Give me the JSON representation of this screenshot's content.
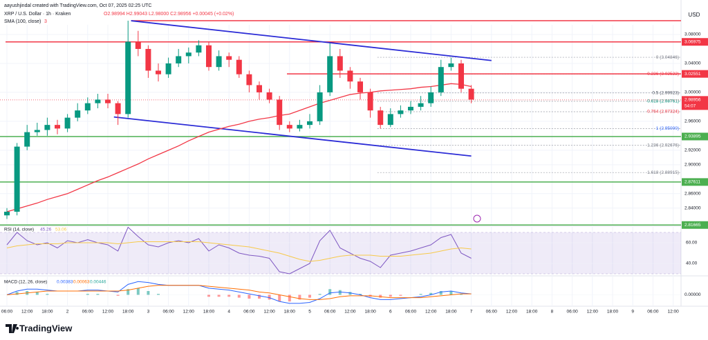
{
  "header": {
    "author_line": "aayushjindal created with TradingView.com, Oct 07, 2025 02:25 UTC",
    "symbol_line": "XRP / U.S. Dollar · 1h · Kraken",
    "ohlc_line": "O2.98994 H2.99043 L2.98000 C2.98956 +0.00045 (+0.02%)",
    "sma_label": "SMA (100, close)",
    "sma_value": "3"
  },
  "currency": "USD",
  "brand": "TradingView",
  "chart_data": {
    "type": "candlestick",
    "open": [
      2.83,
      2.835,
      2.925,
      2.945,
      2.948,
      2.955,
      2.95,
      2.965,
      2.975,
      2.985,
      2.99,
      2.985,
      2.97,
      3.07,
      3.06,
      3.03,
      3.025,
      3.04,
      3.05,
      3.055,
      3.065,
      3.035,
      3.05,
      3.045,
      3.025,
      3.01,
      3.0,
      2.99,
      2.955,
      2.95,
      2.955,
      2.96,
      3.0,
      3.05,
      3.03,
      3.015,
      3.0,
      2.975,
      2.955,
      2.97,
      2.975,
      2.98,
      2.985,
      3.0,
      3.035,
      3.04,
      3.005
    ],
    "high": [
      2.84,
      2.93,
      2.955,
      2.958,
      2.965,
      2.962,
      2.97,
      2.985,
      2.993,
      2.998,
      2.998,
      2.988,
      3.099,
      3.085,
      3.065,
      3.04,
      3.048,
      3.06,
      3.062,
      3.072,
      3.07,
      3.058,
      3.055,
      3.05,
      3.03,
      3.015,
      3.005,
      2.995,
      2.96,
      2.962,
      2.97,
      3.01,
      3.068,
      3.06,
      3.035,
      3.02,
      3.005,
      2.98,
      2.978,
      2.982,
      2.988,
      2.995,
      3.008,
      3.045,
      3.048,
      3.045,
      3.01
    ],
    "low": [
      2.825,
      2.83,
      2.92,
      2.94,
      2.94,
      2.942,
      2.945,
      2.96,
      2.97,
      2.978,
      2.978,
      2.955,
      2.965,
      3.05,
      3.02,
      3.015,
      3.02,
      3.035,
      3.04,
      3.05,
      3.03,
      3.03,
      3.035,
      3.02,
      3.0,
      2.99,
      2.985,
      2.948,
      2.945,
      2.946,
      2.95,
      2.955,
      2.995,
      3.02,
      3.005,
      2.99,
      2.965,
      2.95,
      2.952,
      2.965,
      2.97,
      2.975,
      2.98,
      2.995,
      3.03,
      3.0,
      2.985
    ],
    "close": [
      2.835,
      2.925,
      2.945,
      2.948,
      2.955,
      2.95,
      2.965,
      2.975,
      2.985,
      2.99,
      2.985,
      2.97,
      3.07,
      3.06,
      3.03,
      3.025,
      3.04,
      3.05,
      3.055,
      3.065,
      3.035,
      3.05,
      3.045,
      3.025,
      3.01,
      3.0,
      2.99,
      2.955,
      2.95,
      2.955,
      2.96,
      3.0,
      3.05,
      3.03,
      3.015,
      3.0,
      2.975,
      2.955,
      2.97,
      2.975,
      2.98,
      2.985,
      3.0,
      3.035,
      3.04,
      3.005,
      2.99
    ],
    "colors": {
      "up": "#089981",
      "down": "#f23645"
    },
    "ylim": [
      2.815,
      3.1
    ],
    "yticks": [
      {
        "value": 3.08,
        "label": "3.08000"
      },
      {
        "value": 3.04,
        "label": "3.04000"
      },
      {
        "value": 3.0,
        "label": "3.00000"
      },
      {
        "value": 2.96,
        "label": "2.96000"
      },
      {
        "value": 2.92,
        "label": "2.92000"
      },
      {
        "value": 2.9,
        "label": "2.90000"
      },
      {
        "value": 2.86,
        "label": "2.86000"
      },
      {
        "value": 2.84,
        "label": "2.84000"
      }
    ],
    "sma": {
      "color": "#f23645",
      "values": [
        2.835,
        2.839,
        2.843,
        2.847,
        2.852,
        2.856,
        2.86,
        2.866,
        2.872,
        2.878,
        2.883,
        2.889,
        2.895,
        2.901,
        2.908,
        2.914,
        2.92,
        2.926,
        2.933,
        2.939,
        2.945,
        2.949,
        2.953,
        2.956,
        2.96,
        2.963,
        2.965,
        2.968,
        2.97,
        2.975,
        2.98,
        2.985,
        2.989,
        2.993,
        2.997,
        2.999,
        3.0,
        3.002,
        3.003,
        3.004,
        3.005,
        3.007,
        3.008,
        3.01,
        3.012,
        3.011,
        3.008
      ]
    },
    "hlines": [
      {
        "value": 3.099,
        "color": "#f23645"
      }
    ],
    "price_tags": [
      {
        "value": 3.06975,
        "color": "#f23645"
      },
      {
        "value": 3.02551,
        "color": "#f23645"
      },
      {
        "value": 2.98956,
        "color": "#f23645"
      },
      {
        "value": 2.93895,
        "color": "#4caf50"
      },
      {
        "value": 2.87611,
        "color": "#4caf50"
      },
      {
        "value": 2.81665,
        "color": "#4caf50"
      }
    ],
    "countdown": "54:07",
    "trendlines": [
      {
        "color": "#2b2bd6",
        "points": [
          [
            12.3,
            3.099
          ],
          [
            48,
            3.044
          ]
        ]
      },
      {
        "color": "#2b2bd6",
        "points": [
          [
            10.6,
            2.966
          ],
          [
            46,
            2.912
          ]
        ]
      }
    ],
    "fib": [
      {
        "label": "0 (3.04846)",
        "value": 3.04846,
        "color": "#787b86"
      },
      {
        "label": "0.236 (3.02522)",
        "value": 3.02522,
        "color": "#f23645"
      },
      {
        "label": "0.5 (2.99923)",
        "value": 2.99923,
        "color": "#4c525e"
      },
      {
        "label": "0.618 (2.98761)",
        "value": 2.98761,
        "color": "#089981"
      },
      {
        "label": "0.764 (2.97324)",
        "value": 2.97324,
        "color": "#f23645"
      },
      {
        "label": "1 (2.95000)",
        "value": 2.95,
        "color": "#2962ff"
      },
      {
        "label": "1.236 (2.92676)",
        "value": 2.92676,
        "color": "#787b86"
      },
      {
        "label": "1.618 (2.88915)",
        "value": 2.88915,
        "color": "#787b86"
      }
    ],
    "time_labels": [
      "06:00",
      "12:00",
      "18:00",
      "2",
      "06:00",
      "12:00",
      "18:00",
      "3",
      "06:00",
      "12:00",
      "18:00",
      "4",
      "06:00",
      "12:00",
      "18:00",
      "5",
      "06:00",
      "12:00",
      "18:00",
      "6",
      "06:00",
      "12:00",
      "18:00",
      "7",
      "06:00",
      "12:00",
      "18:00",
      "8",
      "06:00",
      "12:00",
      "18:00",
      "9",
      "06:00",
      "12:00"
    ],
    "rsi": {
      "title": "RSI (14, close)",
      "value_texts": [
        "45.26",
        "53.06"
      ],
      "ylim": [
        28,
        76
      ],
      "band": [
        30,
        70
      ],
      "yticks": [
        {
          "value": 60,
          "label": "60.00"
        },
        {
          "value": 40,
          "label": "40.00"
        }
      ],
      "series": [
        {
          "color": "#7e57c2",
          "values": [
            58,
            70,
            62,
            58,
            60,
            55,
            62,
            60,
            63,
            60,
            58,
            52,
            75,
            66,
            58,
            56,
            60,
            62,
            60,
            64,
            52,
            58,
            55,
            50,
            48,
            47,
            45,
            32,
            30,
            35,
            40,
            62,
            72,
            55,
            50,
            45,
            42,
            36,
            48,
            50,
            52,
            55,
            58,
            65,
            68,
            50,
            45
          ]
        },
        {
          "color": "#f7c948",
          "values": [
            55,
            57,
            58,
            59,
            59,
            59,
            60,
            60,
            60,
            60,
            60,
            59,
            60,
            61,
            61,
            61,
            61,
            61,
            61,
            61,
            60,
            59,
            58,
            57,
            56,
            54,
            52,
            50,
            47,
            44,
            42,
            43,
            45,
            47,
            48,
            48,
            48,
            47,
            47,
            47,
            48,
            49,
            50,
            52,
            54,
            55,
            54
          ]
        }
      ]
    },
    "macd": {
      "title": "MACD (12, 26, close)",
      "value_texts": [
        "0.00383",
        "0.00063",
        "0.00446"
      ],
      "ylim": [
        -0.012,
        0.02
      ],
      "yticks": [
        {
          "value": 0,
          "label": "0.00000"
        }
      ],
      "histogram": [
        0,
        0.003,
        0.004,
        0.003,
        0.001,
        0,
        0,
        0,
        0.001,
        0.001,
        0,
        -0.001,
        0.006,
        0.007,
        0.004,
        0.001,
        0,
        0,
        0,
        0,
        -0.002,
        -0.002,
        -0.002,
        -0.003,
        -0.004,
        -0.004,
        -0.005,
        -0.007,
        -0.007,
        -0.005,
        -0.003,
        0.001,
        0.006,
        0.005,
        0.003,
        0.001,
        -0.002,
        -0.003,
        -0.002,
        -0.001,
        0,
        0.001,
        0.002,
        0.004,
        0.004,
        0.001,
        0
      ],
      "series": [
        {
          "color": "#2962ff",
          "values": [
            0,
            0.004,
            0.006,
            0.006,
            0.005,
            0.004,
            0.004,
            0.004,
            0.005,
            0.005,
            0.004,
            0.003,
            0.011,
            0.014,
            0.013,
            0.011,
            0.01,
            0.01,
            0.01,
            0.01,
            0.007,
            0.006,
            0.005,
            0.003,
            0.001,
            -0.001,
            -0.003,
            -0.007,
            -0.009,
            -0.009,
            -0.008,
            -0.004,
            0.002,
            0.003,
            0.002,
            0,
            -0.003,
            -0.005,
            -0.005,
            -0.004,
            -0.003,
            -0.002,
            0,
            0.003,
            0.004,
            0.002,
            0.001
          ]
        },
        {
          "color": "#ff6d00",
          "values": [
            0,
            0.001,
            0.002,
            0.003,
            0.004,
            0.004,
            0.004,
            0.004,
            0.004,
            0.004,
            0.004,
            0.004,
            0.005,
            0.007,
            0.009,
            0.01,
            0.01,
            0.01,
            0.01,
            0.01,
            0.009,
            0.008,
            0.007,
            0.006,
            0.005,
            0.003,
            0.002,
            0,
            -0.002,
            -0.004,
            -0.005,
            -0.005,
            -0.004,
            -0.002,
            -0.001,
            -0.001,
            -0.001,
            -0.002,
            -0.003,
            -0.003,
            -0.003,
            -0.003,
            -0.002,
            -0.001,
            0,
            0.001,
            0.001
          ]
        }
      ]
    }
  }
}
